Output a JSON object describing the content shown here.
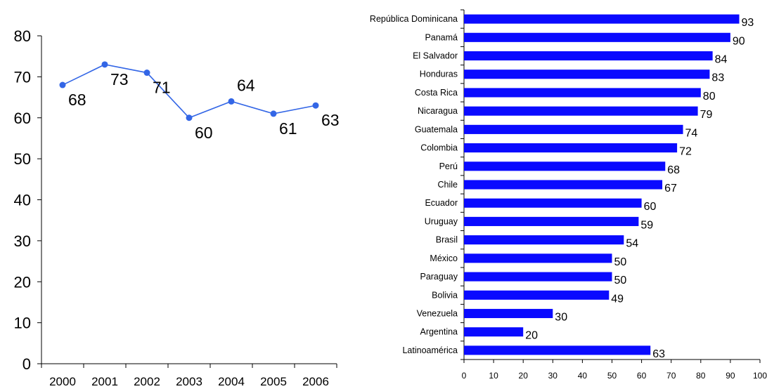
{
  "chart_data": [
    {
      "type": "line",
      "title": "",
      "xlabel": "",
      "ylabel": "",
      "x": [
        "2000",
        "2001",
        "2002",
        "2003",
        "2004",
        "2005",
        "2006"
      ],
      "series": [
        {
          "values": [
            68,
            73,
            71,
            60,
            64,
            61,
            63
          ],
          "color": "#3366e6"
        }
      ],
      "ylim": [
        0,
        80
      ],
      "yticks": [
        0,
        10,
        20,
        30,
        40,
        50,
        60,
        70,
        80
      ],
      "data_labels": true,
      "grid": false,
      "legend": "none"
    },
    {
      "type": "bar",
      "orientation": "horizontal",
      "title": "",
      "xlabel": "",
      "ylabel": "",
      "categories": [
        "República Dominicana",
        "Panamá",
        "El Salvador",
        "Honduras",
        "Costa Rica",
        "Nicaragua",
        "Guatemala",
        "Colombia",
        "Perú",
        "Chile",
        "Ecuador",
        "Uruguay",
        "Brasil",
        "México",
        "Paraguay",
        "Bolivia",
        "Venezuela",
        "Argentina",
        "Latinoamérica"
      ],
      "values": [
        93,
        90,
        84,
        83,
        80,
        79,
        74,
        72,
        68,
        67,
        60,
        59,
        54,
        50,
        50,
        49,
        30,
        20,
        63
      ],
      "xlim": [
        0,
        100
      ],
      "xticks": [
        0,
        10,
        20,
        30,
        40,
        50,
        60,
        70,
        80,
        90,
        100
      ],
      "bar_color": "#0a0aff",
      "data_labels": true,
      "grid": false,
      "legend": "none"
    }
  ]
}
